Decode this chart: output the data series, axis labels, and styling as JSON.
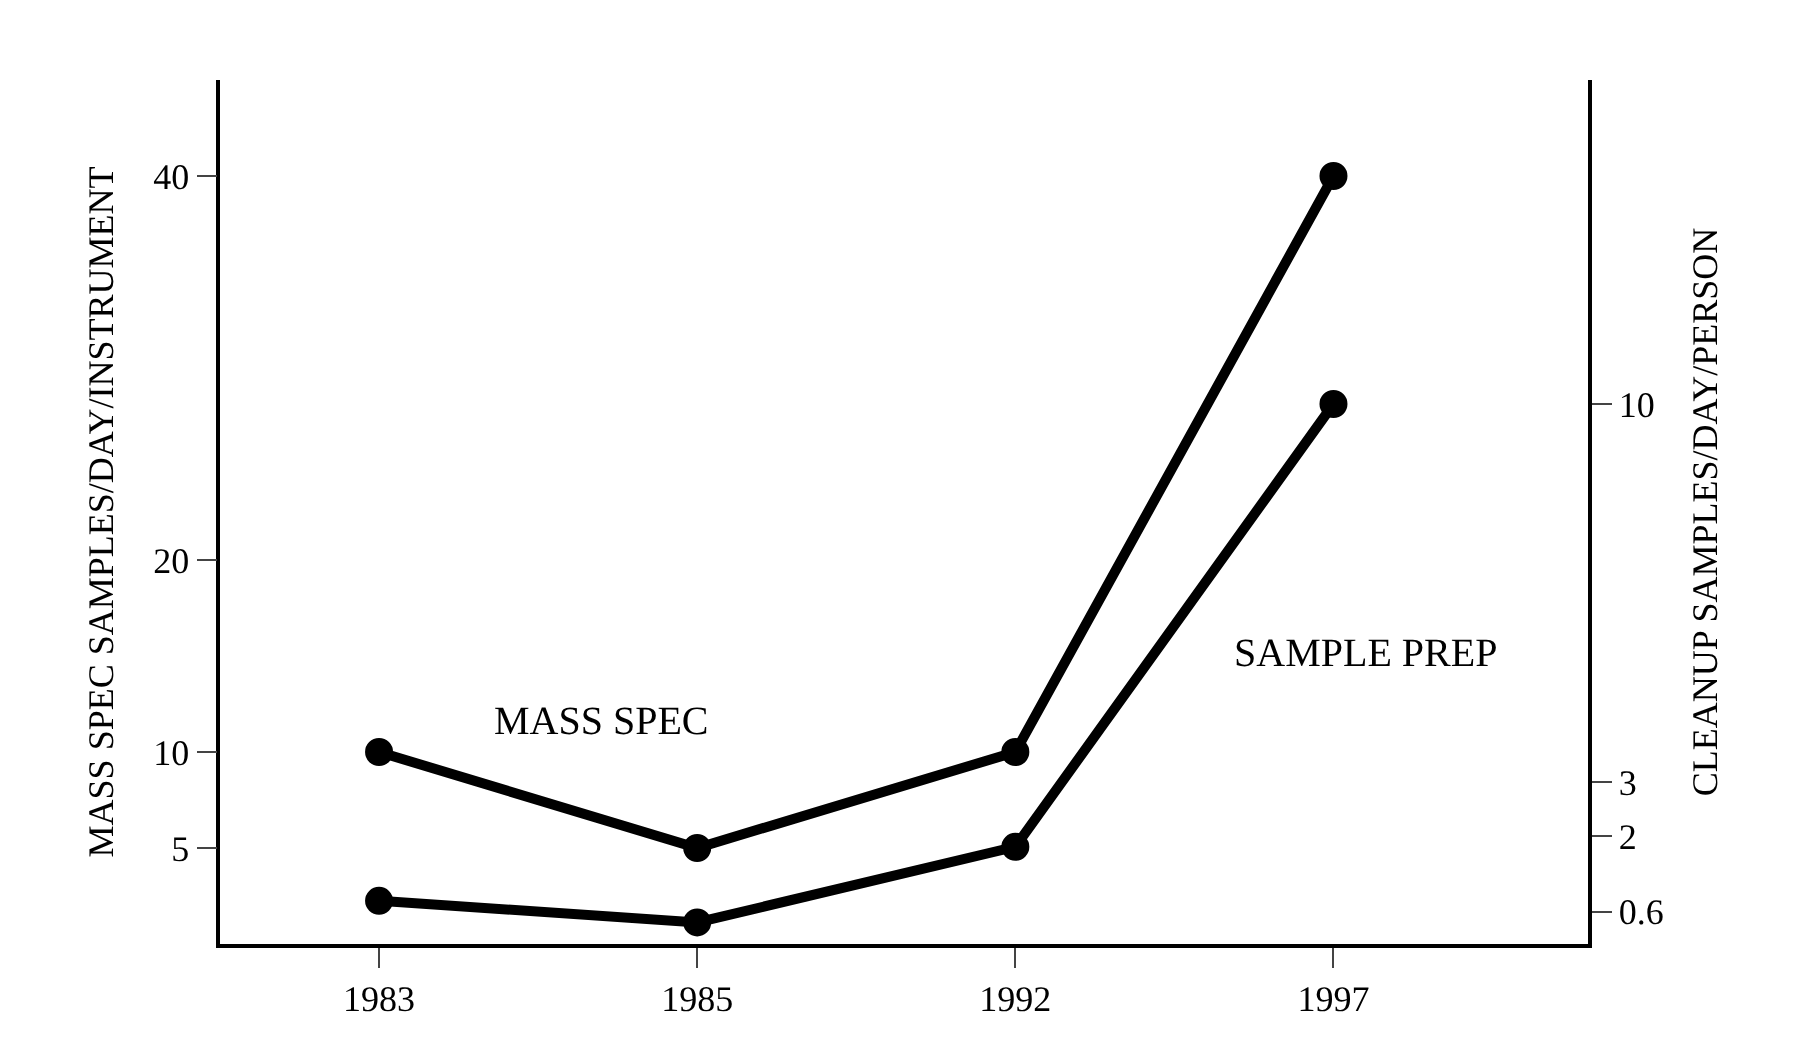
{
  "chart_data": {
    "type": "line",
    "ylabel": "MASS SPEC SAMPLES/DAY/INSTRUMENT",
    "y2label": "CLEANUP SAMPLES/DAY/PERSON",
    "categories": [
      "1983",
      "1985",
      "1992",
      "1997"
    ],
    "series": [
      {
        "name": "MASS SPEC",
        "color": "#000000",
        "values": [
          10,
          5,
          10,
          40
        ]
      },
      {
        "name": "SAMPLE PREP",
        "color": "#000000",
        "axis": "y2",
        "values": [
          0.8,
          0.4,
          1.8,
          10
        ]
      }
    ],
    "ylim": [
      0,
      45
    ],
    "yticks": [
      5,
      10,
      20,
      40
    ],
    "y2lim": [
      0,
      16
    ],
    "y2ticks": [
      0.6,
      2,
      3,
      10
    ],
    "marker": "circle",
    "line_style": "solid",
    "grid": false,
    "legend": false
  }
}
